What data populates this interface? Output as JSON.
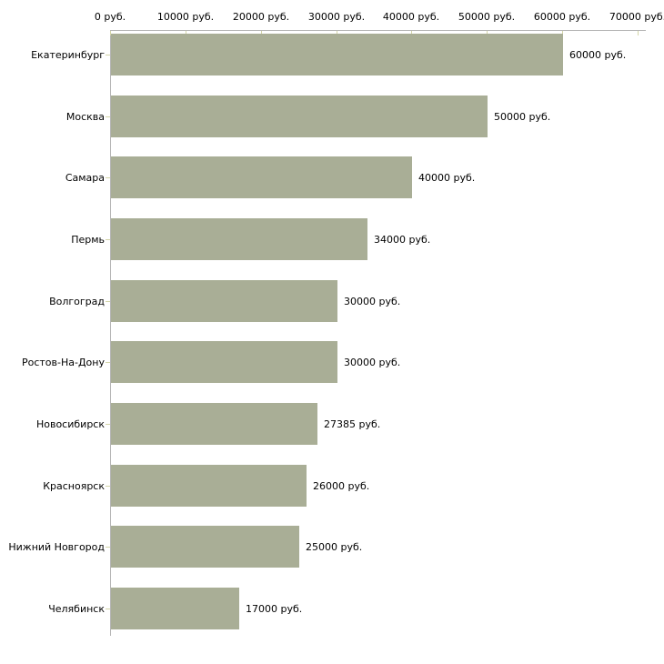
{
  "chart_data": {
    "type": "bar",
    "orientation": "horizontal",
    "title": "",
    "xlabel": "",
    "ylabel": "",
    "unit_suffix": " руб.",
    "categories": [
      "Екатеринбург",
      "Москва",
      "Самара",
      "Пермь",
      "Волгоград",
      "Ростов-На-Дону",
      "Новосибирск",
      "Красноярск",
      "Нижний Новгород",
      "Челябинск"
    ],
    "values": [
      60000,
      50000,
      40000,
      34000,
      30000,
      30000,
      27385,
      26000,
      25000,
      17000
    ],
    "value_labels": [
      "60000 руб.",
      "50000 руб.",
      "40000 руб.",
      "34000 руб.",
      "30000 руб.",
      "30000 руб.",
      "27385 руб.",
      "26000 руб.",
      "25000 руб.",
      "17000 руб."
    ],
    "x_axis": {
      "position": "top",
      "range": [
        0,
        70000
      ],
      "ticks": [
        0,
        10000,
        20000,
        30000,
        40000,
        50000,
        60000,
        70000
      ],
      "tick_labels": [
        "0 руб.",
        "10000 руб.",
        "20000 руб.",
        "30000 руб.",
        "40000 руб.",
        "50000 руб.",
        "60000 руб.",
        "70000 руб."
      ]
    },
    "grid": false,
    "legend": false,
    "colors": {
      "bar_fill": "#a9ae96",
      "axis_line": "#b6b6b6",
      "tick_mark": "#d4d5a8",
      "text": "#000000",
      "background": "#ffffff"
    }
  }
}
